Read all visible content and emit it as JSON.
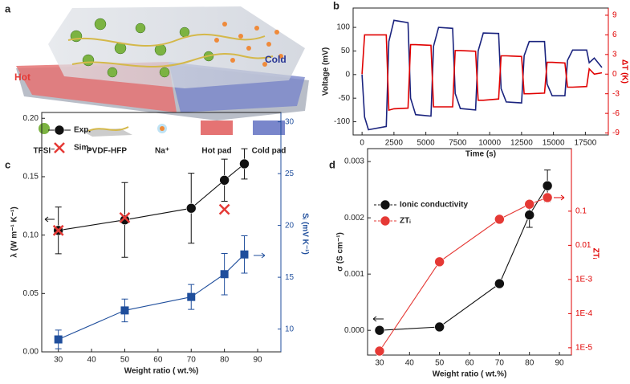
{
  "schematic": {
    "panel": "a",
    "hot": "Hot",
    "cold": "Cold",
    "legend": [
      "TFSI⁻",
      "PVDF-HFP",
      "Na⁺",
      "Hot pad",
      "Cold pad"
    ]
  },
  "chart_data": [
    {
      "type": "line",
      "panel": "b",
      "xlabel": "Time (s)",
      "ylabel": "Voltage (mV)",
      "y2label": "ΔT (K)",
      "y2color": "#e00000",
      "x": [
        0,
        200,
        500,
        1900,
        2100,
        2500,
        3600,
        3800,
        4200,
        5400,
        5600,
        6000,
        7100,
        7300,
        7700,
        8900,
        9100,
        9500,
        10700,
        10900,
        11300,
        12500,
        12700,
        13100,
        14300,
        14500,
        14900,
        15900,
        16100,
        16500,
        17600,
        17800,
        18200,
        18800
      ],
      "xlim": [
        -700,
        19300
      ],
      "xticks": [
        0,
        2500,
        5000,
        7500,
        10000,
        12500,
        15000,
        17500
      ],
      "ylim": [
        -128,
        141
      ],
      "yticks": [
        -100,
        -50,
        0,
        50,
        100
      ],
      "y2lim": [
        -9.3,
        10.1
      ],
      "y2ticks": [
        -9,
        -6,
        -3,
        0,
        3,
        6,
        9
      ],
      "series": [
        {
          "color": "#1a237e",
          "values": [
            0,
            -90,
            -117,
            -110,
            70,
            115,
            110,
            -50,
            -85,
            -88,
            60,
            100,
            98,
            -40,
            -72,
            -75,
            50,
            88,
            87,
            -30,
            -58,
            -60,
            40,
            70,
            70,
            -20,
            -45,
            -45,
            30,
            52,
            52,
            25,
            35,
            15
          ]
        },
        {
          "color": "#e00000",
          "axis": "y2",
          "values": [
            0,
            6,
            6,
            6,
            -5.5,
            -5.3,
            -5.2,
            4.5,
            4.5,
            4.4,
            -5,
            -5,
            -5,
            3.6,
            3.6,
            3.5,
            -4,
            -4,
            -3.8,
            2.8,
            2.8,
            2.7,
            -3,
            -3,
            -2.9,
            1.8,
            1.8,
            1.7,
            -2,
            -2,
            -1.9,
            0.8,
            0,
            0.2
          ]
        }
      ]
    },
    {
      "type": "scatter",
      "panel": "c",
      "xlabel": "Weight ratio ( wt.%)",
      "ylabel": "λ (W m⁻¹ K⁻¹)",
      "y2label": "Sᵢ (mV K⁻¹)",
      "y2color": "#1f4e9c",
      "legend": "top-left",
      "xlim": [
        25,
        97
      ],
      "xticks": [
        30,
        40,
        50,
        60,
        70,
        80,
        90
      ],
      "ylim": [
        0,
        0.205
      ],
      "yticks": [
        {
          "value": 0,
          "label": "0.00"
        },
        {
          "value": 0.05,
          "label": "0.05"
        },
        {
          "value": 0.1,
          "label": "0.10"
        },
        {
          "value": 0.15,
          "label": "0.15"
        },
        {
          "value": 0.2,
          "label": "0.20"
        }
      ],
      "y2lim": [
        7.8,
        30.9
      ],
      "y2ticks": [
        10,
        15,
        20,
        25,
        30
      ],
      "series": [
        {
          "name": "Exp.",
          "color": "#111111",
          "marker": "circle",
          "x": [
            30,
            50,
            70,
            80,
            86
          ],
          "values": [
            0.104,
            0.113,
            0.123,
            0.147,
            0.161
          ],
          "errors": [
            0.02,
            0.032,
            0.03,
            0.018,
            0.013
          ]
        },
        {
          "name": "Sim.",
          "color": "#e53935",
          "marker": "x",
          "line": false,
          "x": [
            30,
            50,
            80
          ],
          "values": [
            0.104,
            0.115,
            0.122
          ]
        },
        {
          "color": "#1f4e9c",
          "marker": "square",
          "axis": "y2",
          "x": [
            30,
            50,
            70,
            80,
            86
          ],
          "values": [
            9,
            11.8,
            13.1,
            15.3,
            17.2
          ],
          "errors": [
            0.9,
            1.1,
            1.2,
            2,
            1.8
          ]
        }
      ]
    },
    {
      "type": "scatter",
      "panel": "d",
      "xlabel": "Weight ratio ( wt.%)",
      "ylabel": "σ (S cm⁻¹)",
      "y2label": "ZTᵢ",
      "y2color": "#e00000",
      "y2scale": "log",
      "legend": "top-left",
      "xlim": [
        26,
        94
      ],
      "xticks": [
        30,
        40,
        50,
        60,
        70,
        80,
        90
      ],
      "ylim": [
        -0.00044,
        0.00323
      ],
      "yticks": [
        {
          "value": 0,
          "label": "0.000"
        },
        {
          "value": 0.001,
          "label": "0.001"
        },
        {
          "value": 0.002,
          "label": "0.002"
        },
        {
          "value": 0.003,
          "label": "0.003"
        }
      ],
      "y2lim": [
        6.1e-06,
        6.8
      ],
      "y2ticks": [
        {
          "value": 1e-05,
          "label": "1E-5"
        },
        {
          "value": 0.0001,
          "label": "1E-4"
        },
        {
          "value": 0.001,
          "label": "1E-3"
        },
        {
          "value": 0.01,
          "label": "0.01"
        },
        {
          "value": 0.1,
          "label": "0.1"
        }
      ],
      "series": [
        {
          "name": "Ionic conductivity",
          "color": "#111111",
          "marker": "circle",
          "x": [
            30,
            50,
            70,
            80,
            86
          ],
          "values": [
            0,
            6e-05,
            0.00083,
            0.00205,
            0.00257
          ],
          "errors": [
            4e-05,
            4e-05,
            4e-05,
            0.00022,
            0.00028
          ]
        },
        {
          "name": "ZTᵢ",
          "color": "#e53935",
          "marker": "circle",
          "axis": "y2",
          "x": [
            30,
            50,
            70,
            80,
            86
          ],
          "values": [
            8e-06,
            0.0033,
            0.058,
            0.16,
            0.25
          ]
        }
      ]
    }
  ]
}
